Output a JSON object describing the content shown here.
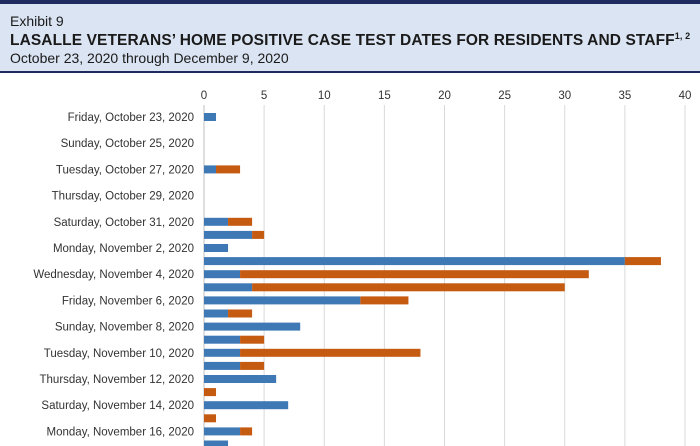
{
  "header": {
    "exhibit": "Exhibit 9",
    "title": "LASALLE VETERANS’ HOME POSITIVE CASE TEST DATES FOR RESIDENTS AND STAFF",
    "title_footnote": "1, 2",
    "subtitle": "October 23, 2020 through December 9, 2020"
  },
  "colors": {
    "residents": "#3f79b5",
    "staff": "#c55a11"
  },
  "chart_data": {
    "type": "bar",
    "orientation": "horizontal",
    "stacked": true,
    "xlim": [
      0,
      40
    ],
    "xticks": [
      0,
      5,
      10,
      15,
      20,
      25,
      30,
      35,
      40
    ],
    "grid": true,
    "categories": [
      "Friday, October 23, 2020",
      "",
      "Sunday, October 25, 2020",
      "",
      "Tuesday, October 27, 2020",
      "",
      "Thursday, October 29, 2020",
      "",
      "Saturday, October 31, 2020",
      "",
      "Monday, November 2, 2020",
      "",
      "Wednesday, November 4, 2020",
      "",
      "Friday, November 6, 2020",
      "",
      "Sunday, November 8, 2020",
      "",
      "Tuesday, November 10, 2020",
      "",
      "Thursday, November 12, 2020",
      "",
      "Saturday, November 14, 2020",
      "",
      "Monday, November 16, 2020",
      ""
    ],
    "series": [
      {
        "values": [
          1,
          0,
          0,
          0,
          1,
          0,
          0,
          0,
          2,
          4,
          2,
          35,
          3,
          4,
          13,
          2,
          8,
          3,
          3,
          3,
          6,
          0,
          7,
          0,
          3,
          2
        ]
      },
      {
        "values": [
          0,
          0,
          0,
          0,
          2,
          0,
          0,
          0,
          2,
          1,
          0,
          3,
          29,
          26,
          4,
          2,
          0,
          2,
          15,
          2,
          0,
          1,
          0,
          1,
          1,
          0
        ]
      }
    ]
  }
}
